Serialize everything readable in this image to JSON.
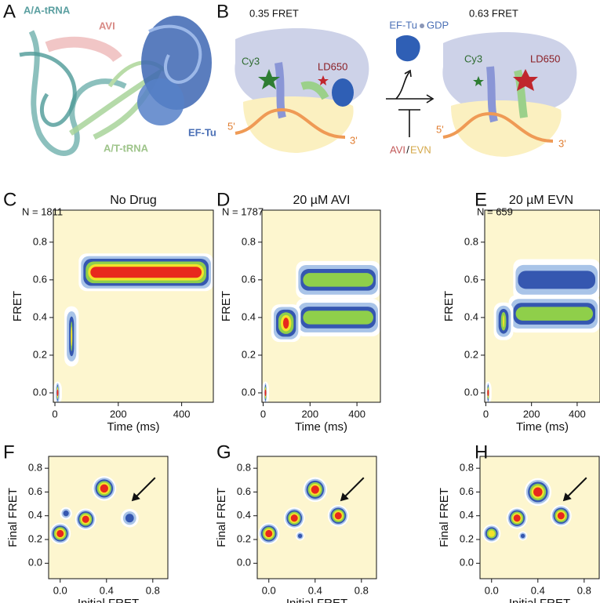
{
  "panel_a": {
    "letter": "A",
    "labels": [
      "A/A-tRNA",
      "AVI",
      "EF-Tu",
      "A/T-tRNA"
    ]
  },
  "panel_b": {
    "letter": "B",
    "left_state": "0.35 FRET",
    "right_state": "0.63 FRET",
    "factor": "EF-Tu",
    "nucleotide": "GDP",
    "donor": "Cy3",
    "acceptor": "LD650",
    "five_prime": "5'",
    "three_prime": "3'",
    "drug_1": "AVI",
    "separator": "/",
    "drug_2": "EVN"
  },
  "chart_data": [
    {
      "type": "contour_time",
      "letter": "C",
      "title": "No Drug",
      "count_label": "N = 1811",
      "xlabel": "Time (ms)",
      "ylabel": "FRET",
      "xlim": [
        -5,
        500
      ],
      "ylim": [
        -0.05,
        0.97
      ],
      "xticks": [
        0,
        200,
        400
      ],
      "yticks": [
        {
          "value": 0,
          "label": "0.0"
        },
        0.2,
        0.4,
        0.6,
        0.8
      ],
      "background": "#fdf6cf",
      "colors": [
        "#ffffff",
        "#a9c4e8",
        "#3557b0",
        "#8fcf4a",
        "#f3e22a",
        "#e8281d"
      ],
      "regions": [
        {
          "x": [
            -5,
            22
          ],
          "y": 0.0,
          "height": 0.12,
          "peak": 5
        },
        {
          "x": [
            30,
            75
          ],
          "y": 0.3,
          "height": 0.32,
          "peak": 4
        },
        {
          "x": [
            75,
            500
          ],
          "y": 0.64,
          "height": 0.2,
          "peak": 5
        }
      ]
    },
    {
      "type": "contour_time",
      "letter": "D",
      "title": "20 µM AVI",
      "count_label": "N = 1787",
      "xlabel": "Time (ms)",
      "ylabel": "FRET",
      "xlim": [
        -5,
        500
      ],
      "ylim": [
        -0.05,
        0.97
      ],
      "xticks": [
        0,
        200,
        400
      ],
      "yticks": [
        {
          "value": 0,
          "label": "0.0"
        },
        0.2,
        0.4,
        0.6,
        0.8
      ],
      "background": "#fdf6cf",
      "colors": [
        "#ffffff",
        "#a9c4e8",
        "#3557b0",
        "#8fcf4a",
        "#f3e22a",
        "#e8281d"
      ],
      "regions": [
        {
          "x": [
            -5,
            25
          ],
          "y": 0.0,
          "height": 0.12,
          "peak": 5
        },
        {
          "x": [
            140,
            500
          ],
          "y": 0.6,
          "height": 0.2,
          "peak": 3
        },
        {
          "x": [
            140,
            500
          ],
          "y": 0.4,
          "height": 0.2,
          "peak": 3
        },
        {
          "x": [
            35,
            160
          ],
          "y": 0.37,
          "height": 0.2,
          "peak": 5
        }
      ]
    },
    {
      "type": "contour_time",
      "letter": "E",
      "title": "20 µM EVN",
      "count_label": "N = 659",
      "xlabel": "Time (ms)",
      "ylabel": "FRET",
      "xlim": [
        -5,
        500
      ],
      "ylim": [
        -0.05,
        0.97
      ],
      "xticks": [
        0,
        200,
        400
      ],
      "yticks": [
        {
          "value": 0,
          "label": "0.0"
        },
        0.2,
        0.4,
        0.6,
        0.8
      ],
      "background": "#fdf6cf",
      "colors": [
        "#ffffff",
        "#a9c4e8",
        "#3557b0",
        "#8fcf4a",
        "#f3e22a",
        "#e8281d"
      ],
      "regions": [
        {
          "x": [
            -5,
            25
          ],
          "y": 0.0,
          "height": 0.12,
          "peak": 5
        },
        {
          "x": [
            120,
            500
          ],
          "y": 0.6,
          "height": 0.22,
          "peak": 2
        },
        {
          "x": [
            100,
            500
          ],
          "y": 0.42,
          "height": 0.2,
          "peak": 3
        },
        {
          "x": [
            35,
            120
          ],
          "y": 0.38,
          "height": 0.2,
          "peak": 4
        }
      ]
    },
    {
      "type": "contour_scatter",
      "letter": "F",
      "xlabel": "Initial FRET",
      "ylabel": "Final FRET",
      "xlim": [
        -0.1,
        0.93
      ],
      "ylim": [
        -0.13,
        0.9
      ],
      "xticks": [
        {
          "value": 0,
          "label": "0.0"
        },
        0.4,
        0.8
      ],
      "yticks": [
        {
          "value": 0,
          "label": "0.0"
        },
        0.2,
        0.4,
        0.6,
        0.8
      ],
      "background": "#fdf6cf",
      "colors": [
        "#ffffff",
        "#a9c4e8",
        "#3557b0",
        "#8fcf4a",
        "#f3e22a",
        "#e8281d"
      ],
      "peaks": [
        {
          "x": 0.0,
          "y": 0.25,
          "size": 0.07,
          "peak": 5
        },
        {
          "x": 0.22,
          "y": 0.37,
          "size": 0.07,
          "peak": 5
        },
        {
          "x": 0.38,
          "y": 0.63,
          "size": 0.08,
          "peak": 5
        },
        {
          "x": 0.6,
          "y": 0.38,
          "size": 0.06,
          "peak": 2
        },
        {
          "x": 0.05,
          "y": 0.42,
          "size": 0.04,
          "peak": 2
        }
      ]
    },
    {
      "type": "contour_scatter",
      "letter": "G",
      "xlabel": "Initial FRET",
      "ylabel": "Final FRET",
      "xlim": [
        -0.1,
        0.93
      ],
      "ylim": [
        -0.13,
        0.9
      ],
      "xticks": [
        {
          "value": 0,
          "label": "0.0"
        },
        0.4,
        0.8
      ],
      "yticks": [
        {
          "value": 0,
          "label": "0.0"
        },
        0.2,
        0.4,
        0.6,
        0.8
      ],
      "background": "#fdf6cf",
      "colors": [
        "#ffffff",
        "#a9c4e8",
        "#3557b0",
        "#8fcf4a",
        "#f3e22a",
        "#e8281d"
      ],
      "peaks": [
        {
          "x": 0.0,
          "y": 0.25,
          "size": 0.07,
          "peak": 5
        },
        {
          "x": 0.22,
          "y": 0.38,
          "size": 0.07,
          "peak": 5
        },
        {
          "x": 0.4,
          "y": 0.62,
          "size": 0.08,
          "peak": 5
        },
        {
          "x": 0.6,
          "y": 0.4,
          "size": 0.07,
          "peak": 5
        },
        {
          "x": 0.27,
          "y": 0.23,
          "size": 0.03,
          "peak": 2
        }
      ]
    },
    {
      "type": "contour_scatter",
      "letter": "H",
      "xlabel": "Initial FRET",
      "ylabel": "Final FRET",
      "xlim": [
        -0.1,
        0.93
      ],
      "ylim": [
        -0.13,
        0.9
      ],
      "xticks": [
        {
          "value": 0,
          "label": "0.0"
        },
        0.4,
        0.8
      ],
      "yticks": [
        {
          "value": 0,
          "label": "0.0"
        },
        0.2,
        0.4,
        0.6,
        0.8
      ],
      "background": "#fdf6cf",
      "colors": [
        "#ffffff",
        "#a9c4e8",
        "#3557b0",
        "#8fcf4a",
        "#f3e22a",
        "#e8281d"
      ],
      "peaks": [
        {
          "x": 0.0,
          "y": 0.25,
          "size": 0.06,
          "peak": 4
        },
        {
          "x": 0.22,
          "y": 0.38,
          "size": 0.07,
          "peak": 5
        },
        {
          "x": 0.4,
          "y": 0.6,
          "size": 0.09,
          "peak": 5
        },
        {
          "x": 0.6,
          "y": 0.4,
          "size": 0.07,
          "peak": 5
        },
        {
          "x": 0.27,
          "y": 0.23,
          "size": 0.03,
          "peak": 2
        }
      ]
    }
  ]
}
